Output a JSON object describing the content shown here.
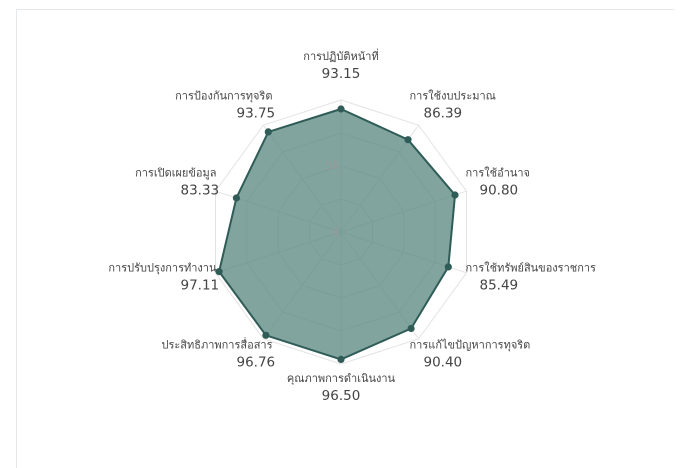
{
  "chart_data": {
    "type": "radar",
    "title": "",
    "rlim": [
      0,
      100
    ],
    "tick_labels": [
      "0",
      "50"
    ],
    "grid": true,
    "colors": {
      "fill": "#5f8a84",
      "line": "#2f5c57",
      "point": "#2f5c57",
      "grid": "#e3e3e3"
    },
    "categories": [
      "การปฏิบัติหน้าที่",
      "การใช้งบประมาณ",
      "การใช้อำนาจ",
      "การใช้ทรัพย์สินของราชการ",
      "การแก้ไขปัญหาการทุจริต",
      "คุณภาพการดำเนินงาน",
      "ประสิทธิภาพการสื่อสาร",
      "การปรับปรุงการทำงาน",
      "การเปิดเผยข้อมูล",
      "การป้องกันการทุจริต"
    ],
    "values": [
      93.15,
      86.39,
      90.8,
      85.49,
      90.4,
      96.5,
      96.76,
      97.11,
      83.33,
      93.75
    ],
    "value_labels": [
      "93.15",
      "86.39",
      "90.80",
      "85.49",
      "90.40",
      "96.50",
      "96.76",
      "97.11",
      "83.33",
      "93.75"
    ]
  }
}
